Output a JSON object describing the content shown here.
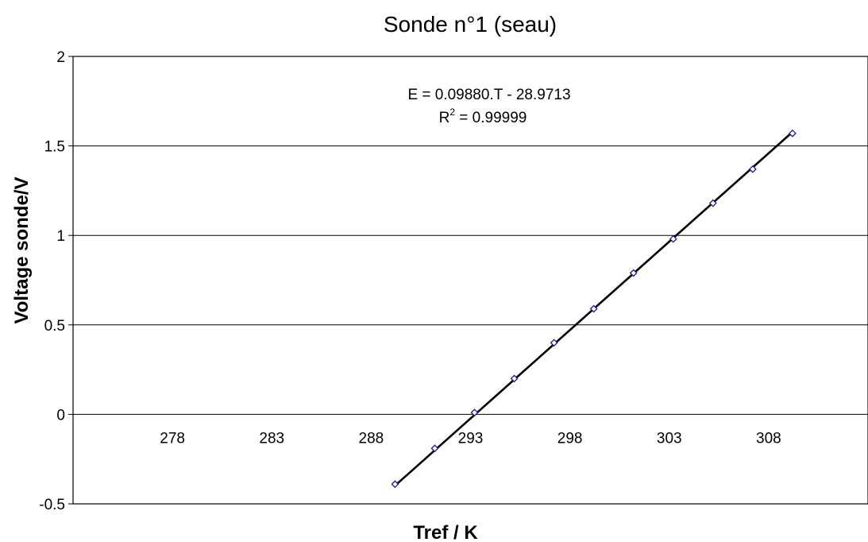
{
  "chart_data": {
    "type": "scatter",
    "title": "Sonde n°1 (seau)",
    "xlabel": "Tref / K",
    "ylabel": "Voltage sonde/V",
    "xlim": [
      273,
      313
    ],
    "ylim": [
      -0.5,
      2
    ],
    "x_ticks": [
      278,
      283,
      288,
      293,
      298,
      303,
      308
    ],
    "y_ticks": [
      -0.5,
      0,
      0.5,
      1,
      1.5,
      2
    ],
    "y_tick_labels": [
      "-0.5",
      "0",
      "0.5",
      "1",
      "1.5",
      "2"
    ],
    "grid": "horizontal",
    "legend": "none",
    "series": [
      {
        "x": [
          289.2,
          291.2,
          293.2,
          295.2,
          297.2,
          299.2,
          301.2,
          303.2,
          305.2,
          307.2,
          309.2
        ],
        "y": [
          -0.39,
          -0.19,
          0.01,
          0.2,
          0.4,
          0.59,
          0.79,
          0.98,
          1.18,
          1.37,
          1.57
        ],
        "marker": "diamond",
        "color": "#1a1a8c"
      }
    ],
    "trendline": {
      "slope": 0.0988,
      "intercept": -28.9713,
      "equation": "E = 0.09880.T - 28.9713",
      "r2_prefix": "R",
      "r2_exponent": "2",
      "r2_value": " = 0.99999"
    }
  }
}
